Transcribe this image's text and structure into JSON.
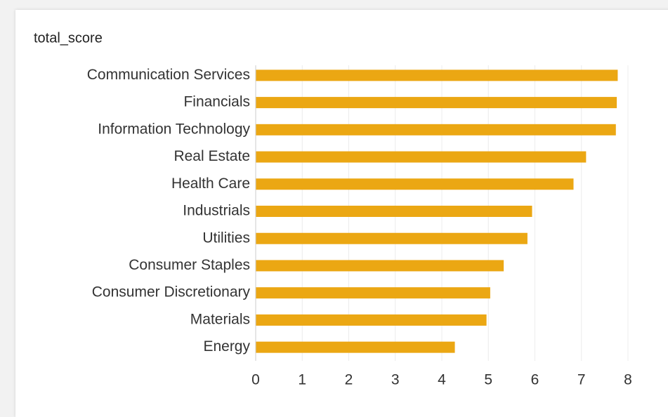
{
  "chart_data": {
    "type": "barh",
    "title": "total_score",
    "categories": [
      "Communication Services",
      "Financials",
      "Information Technology",
      "Real Estate",
      "Health Care",
      "Industrials",
      "Utilities",
      "Consumer Staples",
      "Consumer Discretionary",
      "Materials",
      "Energy"
    ],
    "values": [
      7.78,
      7.76,
      7.74,
      7.1,
      6.83,
      5.94,
      5.84,
      5.33,
      5.04,
      4.96,
      4.28
    ],
    "color": "#eba713",
    "xlim": [
      0,
      8
    ],
    "xticks": [
      0,
      1,
      2,
      3,
      4,
      5,
      6,
      7,
      8
    ],
    "grid": true
  }
}
